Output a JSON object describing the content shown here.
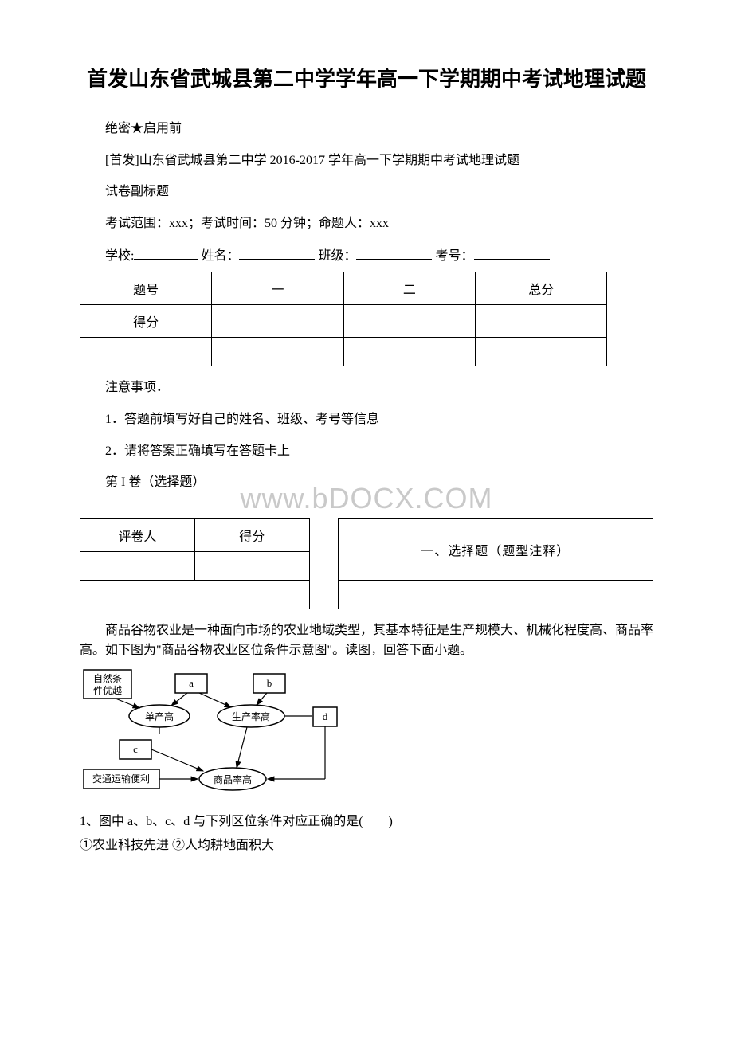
{
  "title": "首发山东省武城县第二中学学年高一下学期期中考试地理试题",
  "secrecy": "绝密★启用前",
  "subtitle": "[首发]山东省武城县第二中学 2016-2017 学年高一下学期期中考试地理试题",
  "subcaption": "试卷副标题",
  "scope": "考试范围：xxx；考试时间：50 分钟；命题人：xxx",
  "fill_labels": {
    "school": "学校:",
    "name": "姓名：",
    "class": "班级：",
    "exam_no": "考号："
  },
  "score_table1": {
    "headers": [
      "题号",
      "一",
      "二",
      "总分"
    ],
    "row_label": "得分"
  },
  "notice_title": "注意事项．",
  "notice_1": "1．答题前填写好自己的姓名、班级、考号等信息",
  "notice_2": "2．请将答案正确填写在答题卡上",
  "section1_label": "第 I 卷（选择题）",
  "section_table": {
    "col1": "评卷人",
    "col2": "得分",
    "right": "一、选择题（题型注释）"
  },
  "watermark_text": "www.bdocx.com",
  "paragraph": "商品谷物农业是一种面向市场的农业地域类型，其基本特征是生产规模大、机械化程度高、商品率高。如下图为\"商品谷物农业区位条件示意图\"。读图，回答下面小题。",
  "diagram": {
    "nodes": {
      "natural": "自然条\n件优越",
      "a": "a",
      "b": "b",
      "yield_high": "单产高",
      "productivity_high": "生产率高",
      "c": "c",
      "d": "d",
      "transport": "交通运输便利",
      "commodity_high": "商品率高"
    }
  },
  "q1": "1、图中 a、b、c、d 与下列区位条件对应正确的是(　　)",
  "q1_options": "①农业科技先进  ②人均耕地面积大",
  "colors": {
    "text": "#000000",
    "border": "#000000",
    "watermark": "#c9c9c9",
    "background": "#ffffff"
  }
}
